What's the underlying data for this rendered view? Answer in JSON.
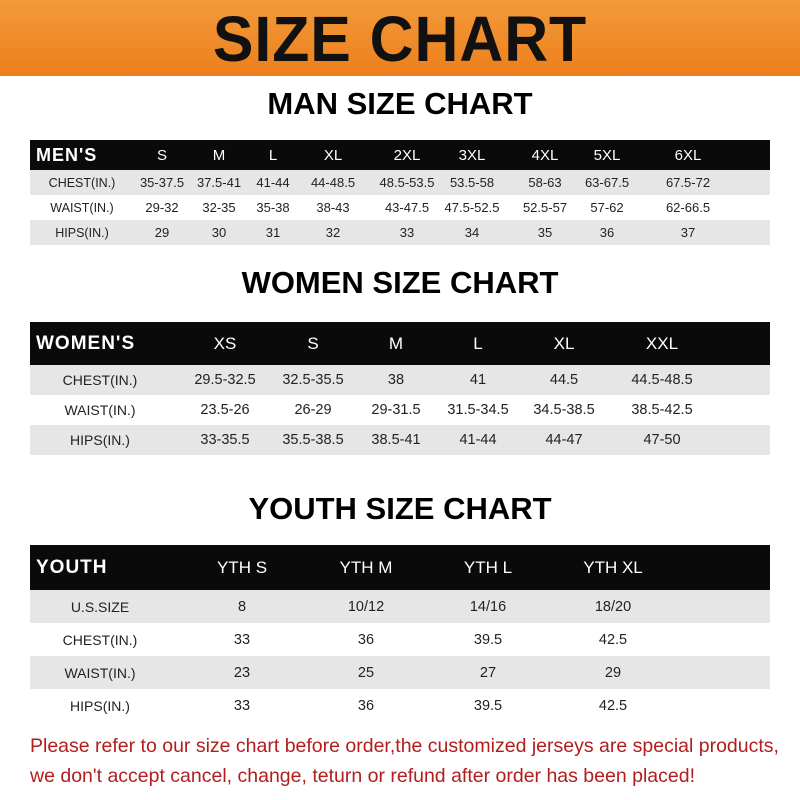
{
  "banner": {
    "title": "SIZE CHART",
    "color": "#ee851f"
  },
  "men": {
    "title": "MAN SIZE CHART",
    "header": "MEN'S",
    "sizes": [
      "S",
      "M",
      "L",
      "XL",
      "2XL",
      "3XL",
      "4XL",
      "5XL",
      "6XL"
    ],
    "rows": [
      {
        "label": "CHEST(IN.)",
        "values": [
          "35-37.5",
          "37.5-41",
          "41-44",
          "44-48.5",
          "48.5-53.5",
          "53.5-58",
          "58-63",
          "63-67.5",
          "67.5-72"
        ]
      },
      {
        "label": "WAIST(IN.)",
        "values": [
          "29-32",
          "32-35",
          "35-38",
          "38-43",
          "43-47.5",
          "47.5-52.5",
          "52.5-57",
          "57-62",
          "62-66.5"
        ]
      },
      {
        "label": "HIPS(IN.)",
        "values": [
          "29",
          "30",
          "31",
          "32",
          "33",
          "34",
          "35",
          "36",
          "37"
        ]
      }
    ]
  },
  "women": {
    "title": "WOMEN SIZE CHART",
    "header": "WOMEN'S",
    "sizes": [
      "XS",
      "S",
      "M",
      "L",
      "XL",
      "XXL"
    ],
    "rows": [
      {
        "label": "CHEST(IN.)",
        "values": [
          "29.5-32.5",
          "32.5-35.5",
          "38",
          "41",
          "44.5",
          "44.5-48.5"
        ]
      },
      {
        "label": "WAIST(IN.)",
        "values": [
          "23.5-26",
          "26-29",
          "29-31.5",
          "31.5-34.5",
          "34.5-38.5",
          "38.5-42.5"
        ]
      },
      {
        "label": "HIPS(IN.)",
        "values": [
          "33-35.5",
          "35.5-38.5",
          "38.5-41",
          "41-44",
          "44-47",
          "47-50"
        ]
      }
    ]
  },
  "youth": {
    "title": "YOUTH SIZE CHART",
    "header": "YOUTH",
    "sizes": [
      "YTH S",
      "YTH M",
      "YTH L",
      "YTH XL"
    ],
    "rows": [
      {
        "label": "U.S.SIZE",
        "values": [
          "8",
          "10/12",
          "14/16",
          "18/20"
        ]
      },
      {
        "label": "CHEST(IN.)",
        "values": [
          "33",
          "36",
          "39.5",
          "42.5"
        ]
      },
      {
        "label": "WAIST(IN.)",
        "values": [
          "23",
          "25",
          "27",
          "29"
        ]
      },
      {
        "label": "HIPS(IN.)",
        "values": [
          "33",
          "36",
          "39.5",
          "42.5"
        ]
      }
    ]
  },
  "footer": {
    "line1": "Please refer to our size chart before order,the customized jerseys are special products,",
    "line2": "we don't accept cancel, change, teturn or refund after order has been placed!",
    "color": "#b21e1e"
  }
}
